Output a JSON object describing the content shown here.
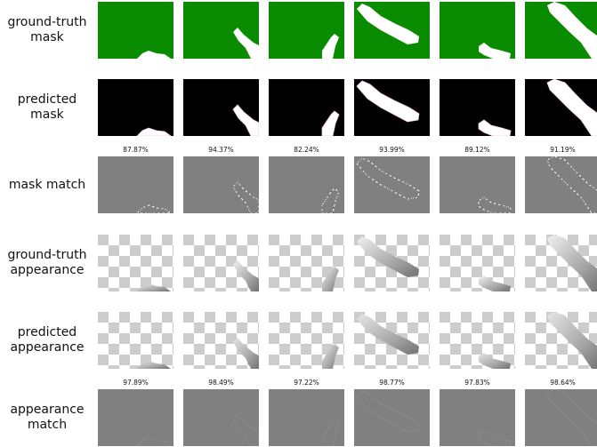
{
  "rows": [
    {
      "label": "ground-truth\nmask",
      "kind": "gt_mask",
      "scores": []
    },
    {
      "label": "predicted\nmask",
      "kind": "pred_mask",
      "scores": []
    },
    {
      "label": "mask match",
      "kind": "mask_match",
      "scores": [
        "87.87%",
        "94.37%",
        "82.24%",
        "93.99%",
        "89.12%",
        "91.19%"
      ]
    },
    {
      "label": "ground-truth\nappearance",
      "kind": "gt_app",
      "scores": []
    },
    {
      "label": "predicted\nappearance",
      "kind": "pred_app",
      "scores": []
    },
    {
      "label": "appearance\nmatch",
      "kind": "app_match",
      "scores": [
        "97.89%",
        "98.49%",
        "97.22%",
        "98.77%",
        "97.83%",
        "98.64%"
      ]
    }
  ],
  "colors": {
    "mask_background": "#0a8c00",
    "predicted_background": "#000000",
    "match_gray": "#808080",
    "checker_light": "#ffffff",
    "checker_dark": "#cccccc",
    "shape_fill": "#ffffff"
  }
}
